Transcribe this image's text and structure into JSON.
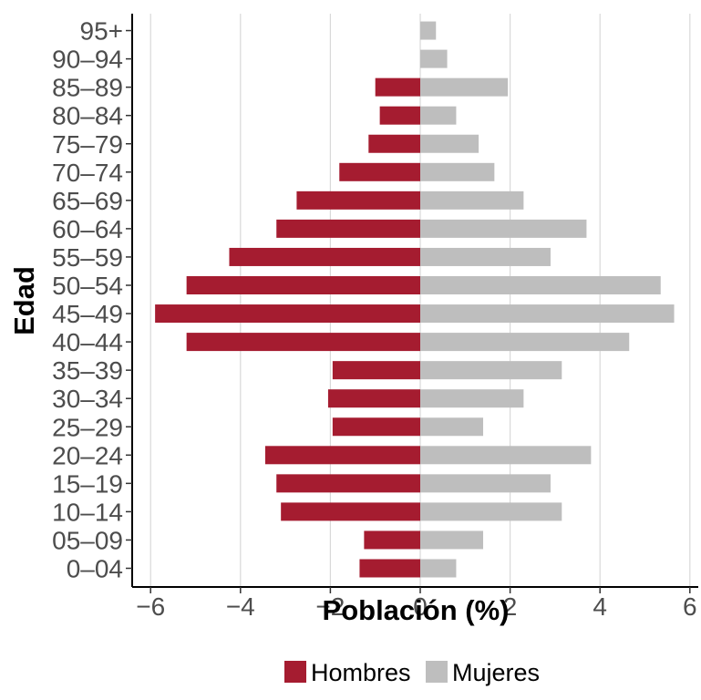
{
  "chart_data": {
    "type": "bar",
    "orientation": "horizontal",
    "subtype": "population-pyramid",
    "title": "",
    "xlabel": "Población (%)",
    "ylabel": "Edad",
    "xlim": [
      -6.4,
      6.2
    ],
    "x_ticks": [
      -6,
      -4,
      -2,
      0,
      2,
      4,
      6
    ],
    "x_tick_labels": [
      "−6",
      "−4",
      "−2",
      "0",
      "2",
      "4",
      "6"
    ],
    "grid": "vertical major gridlines",
    "legend_position": "bottom",
    "categories": [
      "0–04",
      "05–09",
      "10–14",
      "15–19",
      "20–24",
      "25–29",
      "30–34",
      "35–39",
      "40–44",
      "45–49",
      "50–54",
      "55–59",
      "60–64",
      "65–69",
      "70–74",
      "75–79",
      "80–84",
      "85–89",
      "90–94",
      "95+"
    ],
    "series": [
      {
        "name": "Hombres",
        "color": "#a51c30",
        "values": [
          -1.35,
          -1.25,
          -3.1,
          -3.2,
          -3.45,
          -1.95,
          -2.05,
          -1.95,
          -5.2,
          -5.9,
          -5.2,
          -4.25,
          -3.2,
          -2.75,
          -1.8,
          -1.15,
          -0.9,
          -1.0,
          0,
          0
        ]
      },
      {
        "name": "Mujeres",
        "color": "#bebebe",
        "values": [
          0.8,
          1.4,
          3.15,
          2.9,
          3.8,
          1.4,
          2.3,
          3.15,
          4.65,
          5.65,
          5.35,
          2.9,
          3.7,
          2.3,
          1.65,
          1.3,
          0.8,
          1.95,
          0.6,
          0.35
        ]
      }
    ]
  }
}
